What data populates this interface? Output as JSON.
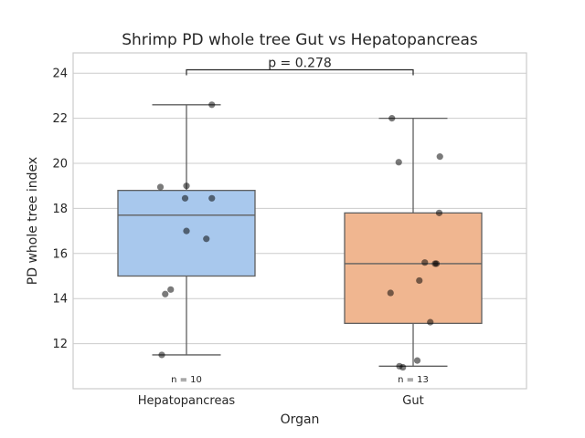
{
  "chart_data": {
    "type": "box",
    "title": "Shrimp PD whole tree Gut vs Hepatopancreas",
    "xlabel": "Organ",
    "ylabel": "PD whole tree index",
    "categories": [
      "Hepatopancreas",
      "Gut"
    ],
    "ylim": [
      10.0,
      24.9
    ],
    "yticks": [
      12,
      14,
      16,
      18,
      20,
      22,
      24
    ],
    "grid": true,
    "box_stats": [
      {
        "category": "Hepatopancreas",
        "whisker_low": 11.5,
        "q1": 15.0,
        "median": 17.7,
        "q3": 18.8,
        "whisker_high": 22.6,
        "color": "#a8c8ed",
        "n_label": "n = 10"
      },
      {
        "category": "Gut",
        "whisker_low": 11.0,
        "q1": 12.9,
        "median": 15.55,
        "q3": 17.8,
        "whisker_high": 22.0,
        "color": "#f0b690",
        "n_label": "n = 13"
      }
    ],
    "points": [
      {
        "category": "Hepatopancreas",
        "y": [
          22.6,
          19.0,
          18.95,
          18.45,
          18.45,
          17.0,
          16.65,
          14.4,
          14.2,
          11.5
        ],
        "jitter": [
          0.37,
          0.0,
          -0.38,
          -0.02,
          0.37,
          0.0,
          0.29,
          -0.23,
          -0.31,
          -0.36
        ]
      },
      {
        "category": "Gut",
        "y": [
          22.0,
          20.3,
          20.05,
          17.8,
          15.6,
          15.55,
          15.55,
          14.8,
          14.25,
          12.95,
          11.25,
          11.0,
          10.95
        ],
        "jitter": [
          -0.31,
          0.39,
          -0.21,
          0.38,
          0.17,
          0.32,
          0.34,
          0.09,
          -0.33,
          0.25,
          0.06,
          -0.2,
          -0.15
        ]
      }
    ],
    "annotation": {
      "text": "p = 0.278",
      "between": [
        "Hepatopancreas",
        "Gut"
      ],
      "y": 24.15
    }
  }
}
